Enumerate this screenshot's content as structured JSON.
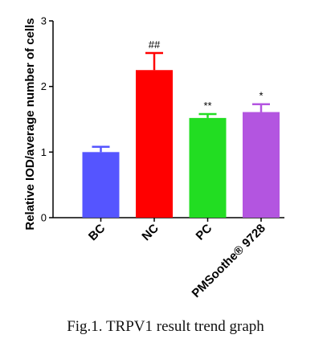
{
  "chart_data": {
    "type": "bar",
    "ylabel": "Relative IOD/average number of cells",
    "ylim": [
      0,
      3
    ],
    "yticks": [
      0,
      1,
      2,
      3
    ],
    "categories": [
      "BC",
      "NC",
      "PC",
      "PMSoothe® 9728"
    ],
    "values": [
      1.0,
      2.25,
      1.52,
      1.61
    ],
    "errors": [
      0.08,
      0.26,
      0.06,
      0.12
    ],
    "colors": [
      "#5555ff",
      "#ff0000",
      "#22dd22",
      "#b355e0"
    ],
    "annotations": [
      "",
      "##",
      "**",
      "*"
    ]
  },
  "caption": "Fig.1. TRPV1 result trend graph"
}
